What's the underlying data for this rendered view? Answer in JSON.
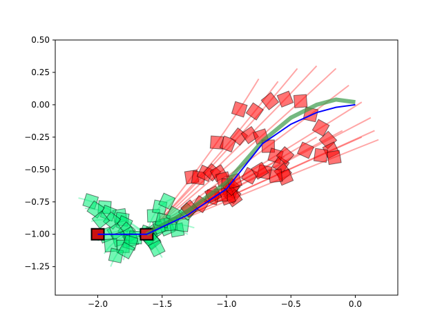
{
  "chart_data": {
    "type": "line",
    "title": "",
    "xlabel": "",
    "ylabel": "",
    "xlim": [
      -2.33,
      0.33
    ],
    "ylim": [
      -1.47,
      0.5
    ],
    "xticks": [
      -2.0,
      -1.5,
      -1.0,
      -0.5,
      0.0
    ],
    "xtick_labels": [
      "−2.0",
      "−1.5",
      "−1.0",
      "−0.5",
      "0.0"
    ],
    "yticks": [
      0.5,
      0.25,
      0.0,
      -0.25,
      -0.5,
      -0.75,
      -1.0,
      -1.25
    ],
    "ytick_labels": [
      "0.50",
      "0.25",
      "0.00",
      "−0.25",
      "−0.50",
      "−0.75",
      "−1.00",
      "−1.25"
    ],
    "grid": false,
    "colors": {
      "mean_path": "#0000ff",
      "red_samples": "#ff0000",
      "green_samples": "#00ee77",
      "box_edge": "#000000"
    },
    "series": [
      {
        "role": "mean_path",
        "color": "#0000ff",
        "x": [
          -2.0,
          -1.62,
          -1.3,
          -1.0,
          -0.72,
          -0.5,
          -0.3,
          -0.15,
          0.0
        ],
        "y": [
          -1.0,
          -1.0,
          -0.85,
          -0.65,
          -0.3,
          -0.15,
          -0.06,
          -0.02,
          0.0
        ]
      },
      {
        "role": "mean_path_green",
        "color": "#3a9a4a",
        "x": [
          -1.62,
          -1.3,
          -1.0,
          -0.72,
          -0.5,
          -0.3,
          -0.15,
          0.0
        ],
        "y": [
          -1.0,
          -0.82,
          -0.6,
          -0.28,
          -0.1,
          0.0,
          0.04,
          0.02
        ]
      }
    ],
    "red_fan": {
      "color": "#ff0000",
      "start": [
        -1.62,
        -1.0
      ],
      "endpoints": [
        [
          -0.75,
          0.2
        ],
        [
          -0.6,
          0.18
        ],
        [
          -0.45,
          0.28
        ],
        [
          -0.3,
          0.3
        ],
        [
          -0.15,
          0.28
        ],
        [
          -0.05,
          0.15
        ],
        [
          0.05,
          0.02
        ],
        [
          0.12,
          -0.1
        ],
        [
          0.15,
          -0.2
        ],
        [
          0.18,
          -0.27
        ],
        [
          0.05,
          -0.25
        ],
        [
          -0.1,
          -0.2
        ],
        [
          -0.3,
          -0.25
        ],
        [
          -0.55,
          -0.4
        ],
        [
          -0.8,
          -0.5
        ]
      ]
    },
    "green_fan": {
      "color": "#00ee77",
      "start": [
        -1.62,
        -1.0
      ],
      "endpoints": [
        [
          -2.15,
          -0.72
        ],
        [
          -2.1,
          -0.8
        ],
        [
          -2.05,
          -0.9
        ],
        [
          -2.0,
          -1.05
        ],
        [
          -1.95,
          -1.15
        ],
        [
          -1.9,
          -1.25
        ],
        [
          -1.8,
          -1.2
        ],
        [
          -1.55,
          -1.1
        ],
        [
          -1.5,
          -1.18
        ],
        [
          -1.3,
          -1.0
        ],
        [
          -1.25,
          -0.95
        ],
        [
          -1.4,
          -0.72
        ],
        [
          -1.2,
          -0.82
        ]
      ]
    },
    "boxes": [
      {
        "x": -2.0,
        "y": -1.0,
        "color": "#cc1111",
        "edge": "#000000"
      },
      {
        "x": -1.62,
        "y": -1.0,
        "color": "#cc2222",
        "edge": "#000000"
      }
    ]
  }
}
